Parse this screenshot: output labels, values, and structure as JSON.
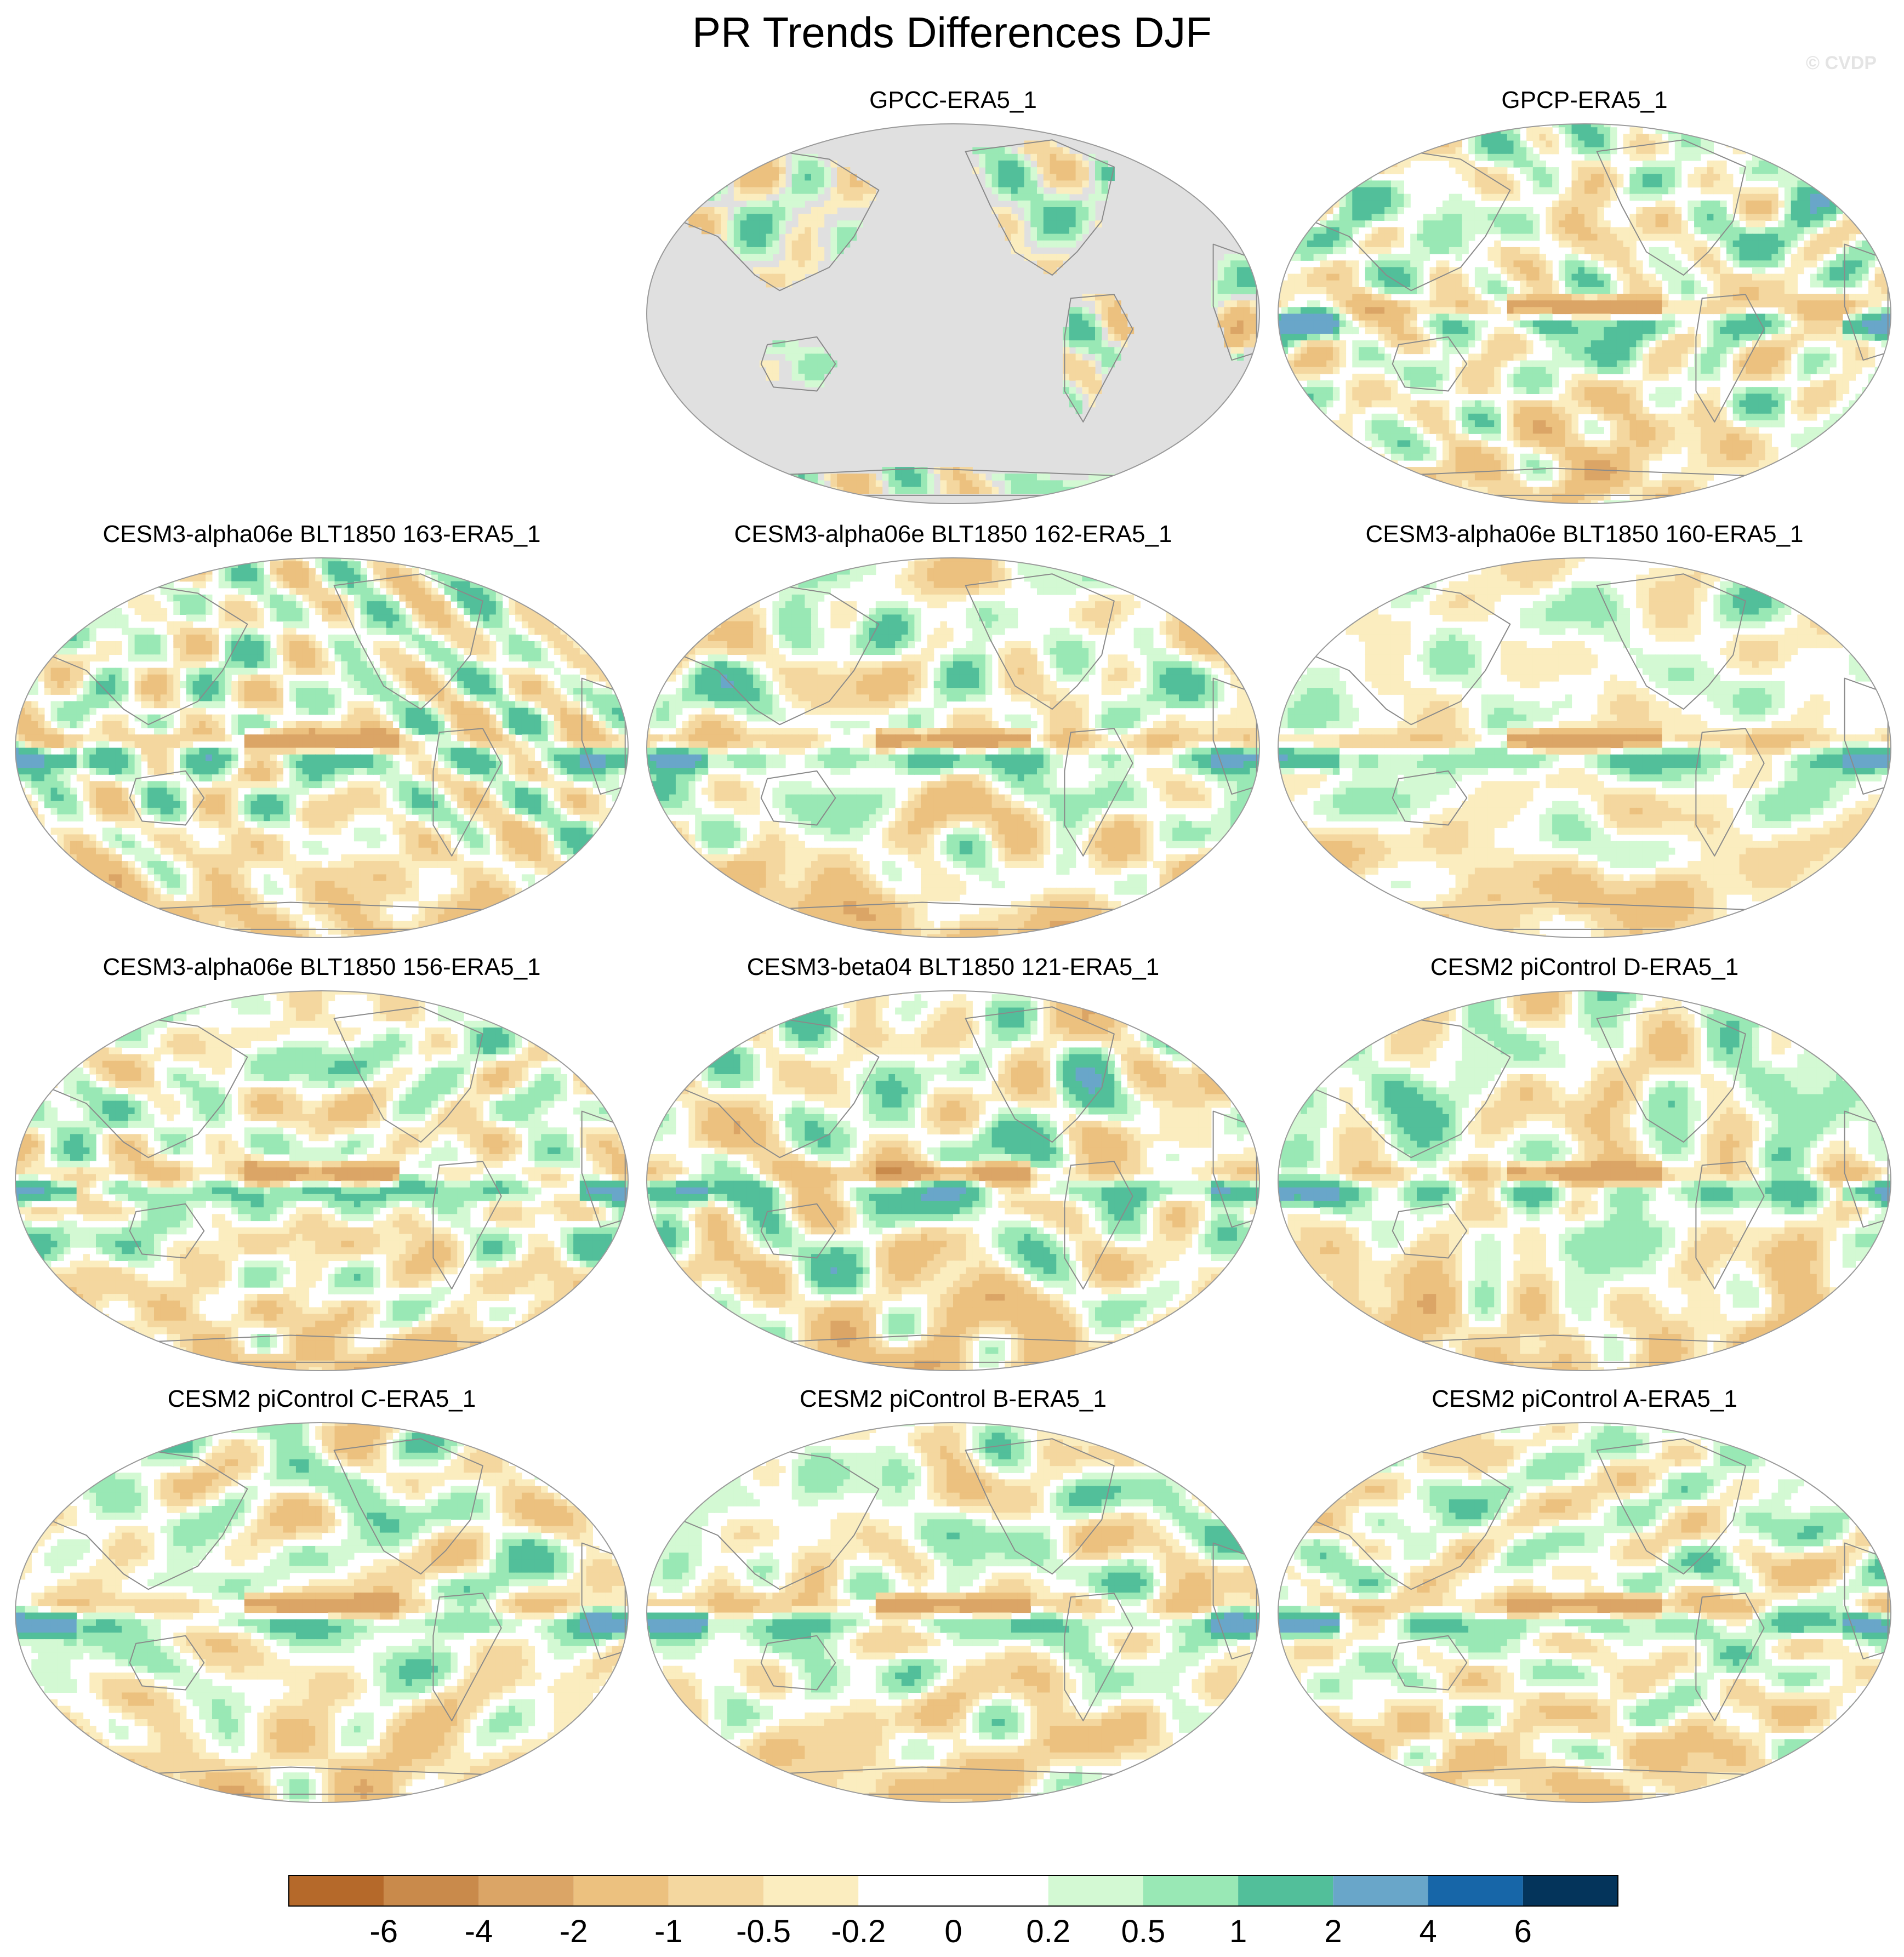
{
  "title": "PR Trends Differences DJF",
  "copyright": "© CVDP",
  "panels": [
    {
      "title": "GPCC-ERA5_1",
      "land_only": true,
      "seed": 11
    },
    {
      "title": "GPCP-ERA5_1",
      "land_only": false,
      "seed": 23
    },
    {
      "title": "CESM3-alpha06e BLT1850 163-ERA5_1",
      "land_only": false,
      "seed": 37
    },
    {
      "title": "CESM3-alpha06e BLT1850 162-ERA5_1",
      "land_only": false,
      "seed": 41
    },
    {
      "title": "CESM3-alpha06e BLT1850 160-ERA5_1",
      "land_only": false,
      "seed": 53
    },
    {
      "title": "CESM3-alpha06e BLT1850 156-ERA5_1",
      "land_only": false,
      "seed": 67
    },
    {
      "title": "CESM3-beta04 BLT1850 121-ERA5_1",
      "land_only": false,
      "seed": 71
    },
    {
      "title": "CESM2 piControl D-ERA5_1",
      "land_only": false,
      "seed": 83
    },
    {
      "title": "CESM2 piControl C-ERA5_1",
      "land_only": false,
      "seed": 97
    },
    {
      "title": "CESM2 piControl B-ERA5_1",
      "land_only": false,
      "seed": 101
    },
    {
      "title": "CESM2 piControl A-ERA5_1",
      "land_only": false,
      "seed": 113
    }
  ],
  "colorbar": {
    "labels": [
      "-6",
      "-4",
      "-2",
      "-1",
      "-0.5",
      "-0.2",
      "0",
      "0.2",
      "0.5",
      "1",
      "2",
      "4",
      "6"
    ],
    "colors": [
      "#b5692a",
      "#c98a4b",
      "#dba566",
      "#ecc17f",
      "#f4d79f",
      "#fbedbf",
      "#ffffff",
      "#ffffff",
      "#d3f9d3",
      "#99e8b5",
      "#52bf9a",
      "#69a6c9",
      "#1766a8",
      "#04345b"
    ]
  },
  "land_color": "#e0e0e0",
  "coast_color": "#8a8a8a"
}
